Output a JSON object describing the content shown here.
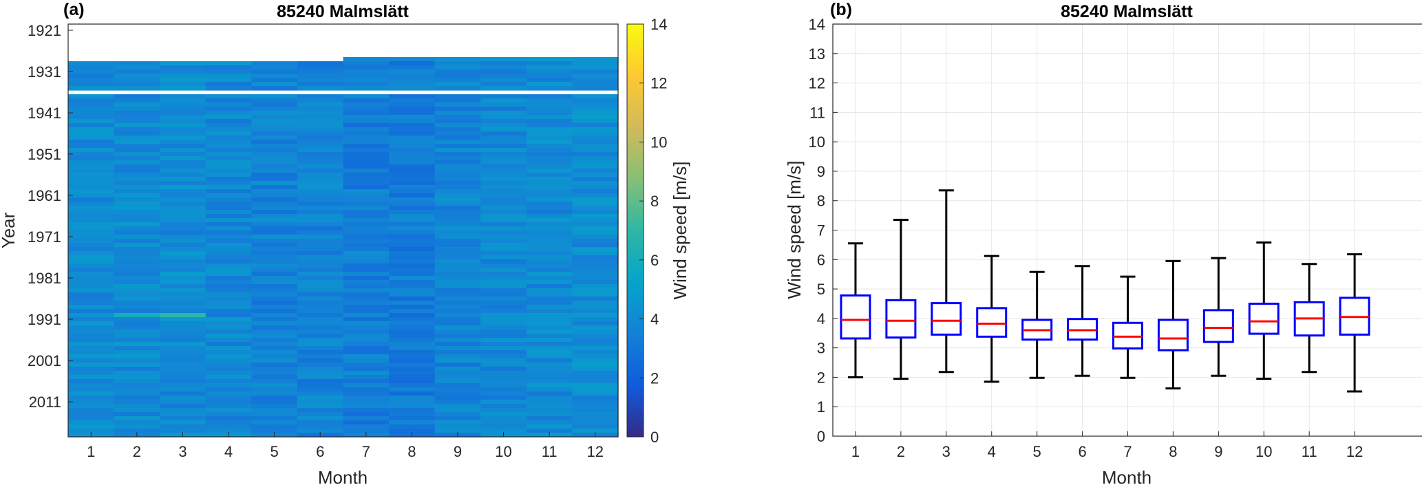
{
  "chart_data": [
    {
      "panel_label": "(a)",
      "type": "heatmap",
      "title": "85240 Malmslätt",
      "xlabel": "Month",
      "ylabel": "Year",
      "colorbar_label": "Wind speed [m/s]",
      "x": [
        "1",
        "2",
        "3",
        "4",
        "5",
        "6",
        "7",
        "8",
        "9",
        "10",
        "11",
        "12"
      ],
      "y_tick_labels": [
        "1921",
        "1931",
        "1941",
        "1951",
        "1961",
        "1971",
        "1981",
        "1991",
        "2001",
        "2011"
      ],
      "y_range": [
        1920,
        2019
      ],
      "clim": [
        0,
        14
      ],
      "colorbar_ticks": [
        "0",
        "2",
        "4",
        "6",
        "8",
        "10",
        "12",
        "14"
      ],
      "missing_periods": "1920–1927 absent for all months; 1936 absent; January–June 1928 absent",
      "highlight": "~1990: February ≈6 m/s, March ≈7 m/s"
    },
    {
      "panel_label": "(b)",
      "type": "boxplot",
      "title": "85240 Malmslätt",
      "xlabel": "Month",
      "ylabel": "Wind speed [m/s]",
      "categories": [
        "1",
        "2",
        "3",
        "4",
        "5",
        "6",
        "7",
        "8",
        "9",
        "10",
        "11",
        "12"
      ],
      "ylim": [
        0,
        14
      ],
      "y_ticks": [
        "0",
        "1",
        "2",
        "3",
        "4",
        "5",
        "6",
        "7",
        "8",
        "9",
        "10",
        "11",
        "12",
        "13",
        "14"
      ],
      "grid": true,
      "median": [
        3.95,
        3.92,
        3.92,
        3.82,
        3.6,
        3.6,
        3.38,
        3.32,
        3.68,
        3.9,
        4.0,
        4.05
      ],
      "q1": [
        3.32,
        3.35,
        3.45,
        3.38,
        3.28,
        3.28,
        2.98,
        2.92,
        3.2,
        3.48,
        3.42,
        3.45
      ],
      "q3": [
        4.78,
        4.62,
        4.52,
        4.35,
        3.95,
        3.98,
        3.85,
        3.95,
        4.28,
        4.5,
        4.55,
        4.7
      ],
      "whisker_low": [
        2.0,
        1.95,
        2.18,
        1.85,
        1.98,
        2.05,
        1.98,
        1.62,
        2.05,
        1.95,
        2.18,
        1.52
      ],
      "whisker_high": [
        6.55,
        7.35,
        8.35,
        6.12,
        5.58,
        5.78,
        5.42,
        5.95,
        6.05,
        6.58,
        5.85,
        6.18
      ],
      "colors": {
        "box": "#0000ff",
        "median": "#ff0000",
        "whisker": "#000000"
      }
    }
  ]
}
